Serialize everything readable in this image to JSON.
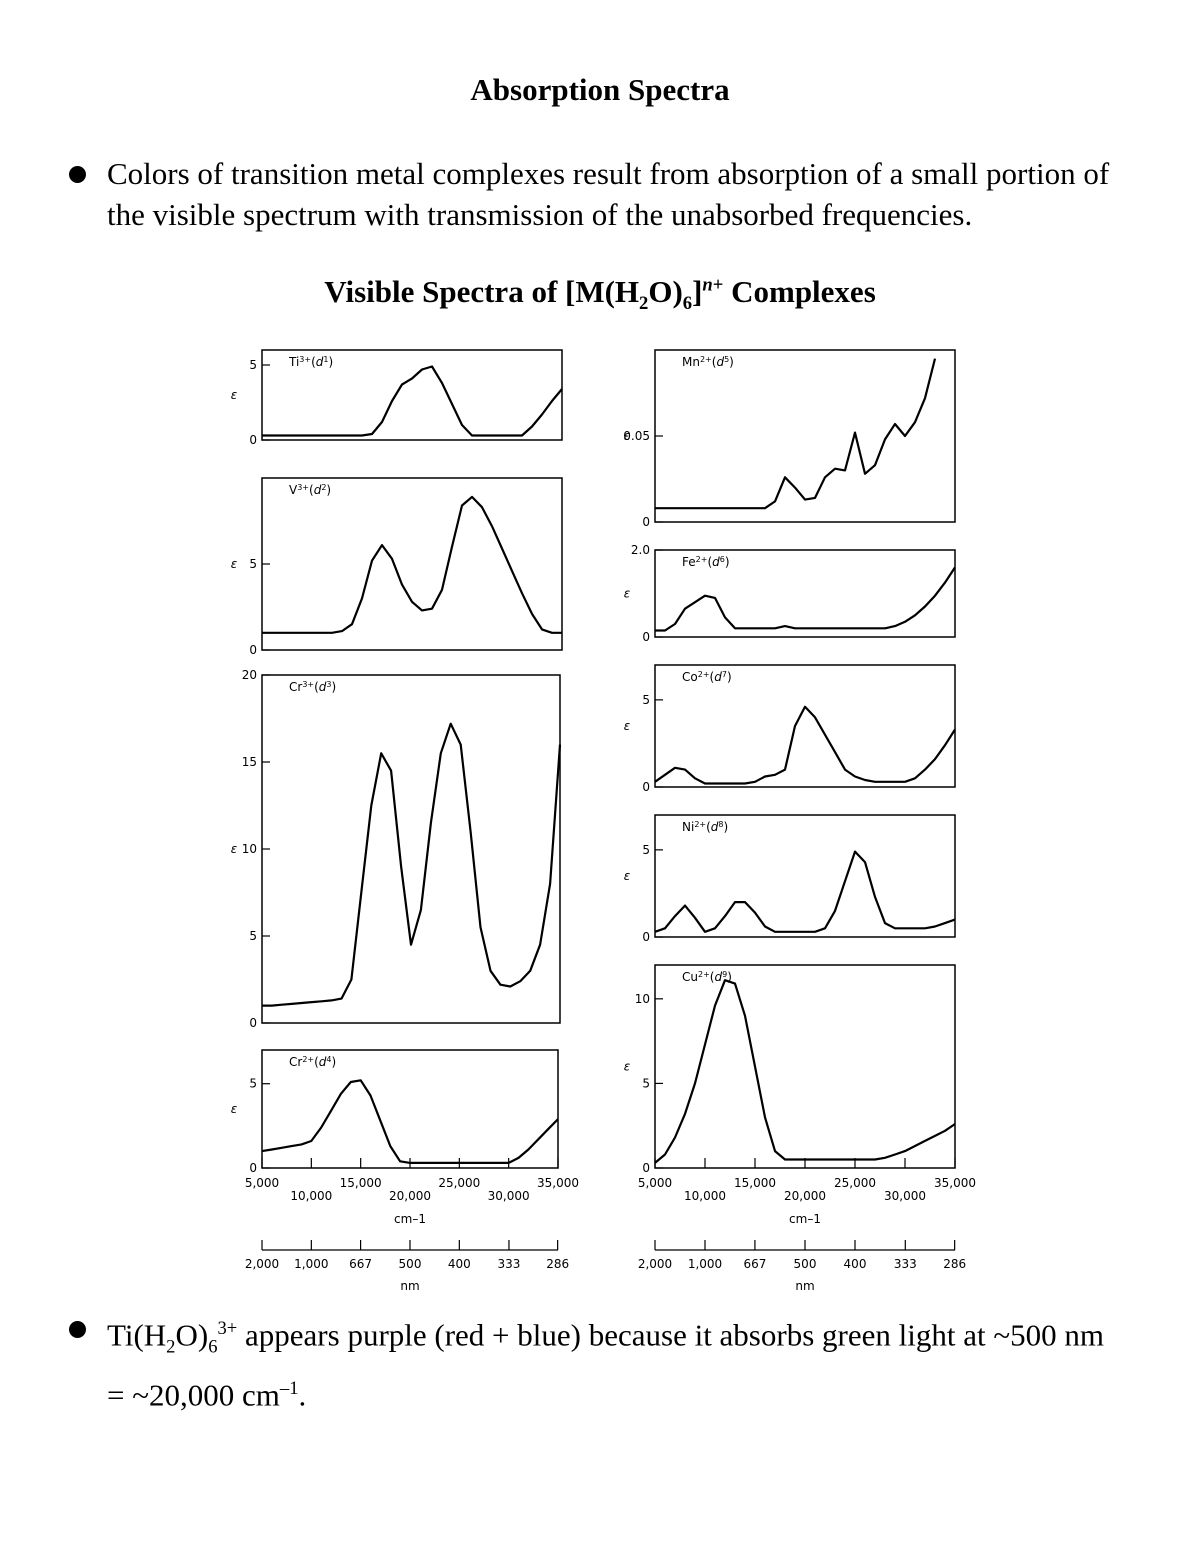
{
  "header": {
    "title": "Absorption Spectra"
  },
  "bullets": [
    {
      "segments": [
        {
          "text": "Colors of transition metal complexes result from absorption of a small portion of the visible spectrum with transmission of the unabsorbed frequencies."
        }
      ]
    },
    {
      "segments": [
        {
          "text": "Ti(H"
        },
        {
          "text": "2",
          "sub": true
        },
        {
          "text": "O)"
        },
        {
          "text": "6",
          "sub": true
        },
        {
          "text": "3+",
          "sup": true
        },
        {
          "text": " appears purple (red + blue) because it absorbs green light at ~500 nm = ~20,000 cm"
        },
        {
          "text": "–1",
          "sup": true
        },
        {
          "text": "."
        }
      ]
    }
  ],
  "figure": {
    "title": {
      "segments": [
        {
          "text": "Visible Spectra of [M(H"
        },
        {
          "text": "2",
          "sub": true
        },
        {
          "text": "O)"
        },
        {
          "text": "6",
          "sub": true
        },
        {
          "text": "]"
        },
        {
          "text": "n",
          "sup": true,
          "italic": true
        },
        {
          "text": "+",
          "sup": true
        },
        {
          "text": " Complexes"
        }
      ]
    }
  },
  "chart_data": [
    {
      "type": "line",
      "label": [
        {
          "text": "Ti"
        },
        {
          "text": "3+",
          "sup": true
        },
        {
          "text": "("
        },
        {
          "text": "d",
          "italic": true
        },
        {
          "text": "1",
          "sup": true
        },
        {
          "text": ")"
        }
      ],
      "y_label": "ε",
      "color": "#000000",
      "x": [
        5000,
        6000,
        7000,
        8000,
        9000,
        10000,
        11000,
        12000,
        13000,
        14000,
        15000,
        16000,
        17000,
        18000,
        19000,
        20000,
        21000,
        22000,
        23000,
        24000,
        25000,
        26000,
        27000,
        28000,
        29000,
        30000,
        31000,
        32000,
        33000,
        34000,
        35000
      ],
      "values": [
        0.3,
        0.3,
        0.3,
        0.3,
        0.3,
        0.3,
        0.3,
        0.3,
        0.3,
        0.3,
        0.3,
        0.4,
        1.2,
        2.6,
        3.7,
        4.1,
        4.7,
        4.9,
        3.8,
        2.4,
        1.0,
        0.3,
        0.3,
        0.3,
        0.3,
        0.3,
        0.3,
        0.9,
        1.7,
        2.6,
        3.4
      ],
      "xlim": [
        5000,
        35000
      ],
      "ylim": [
        0,
        6
      ],
      "yticks": [
        0,
        5
      ]
    },
    {
      "type": "line",
      "label": [
        {
          "text": "V"
        },
        {
          "text": "3+",
          "sup": true
        },
        {
          "text": "("
        },
        {
          "text": "d",
          "italic": true
        },
        {
          "text": "2",
          "sup": true
        },
        {
          "text": ")"
        }
      ],
      "y_label": "ε",
      "color": "#000000",
      "x": [
        5000,
        6000,
        7000,
        8000,
        9000,
        10000,
        11000,
        12000,
        13000,
        14000,
        15000,
        16000,
        17000,
        18000,
        19000,
        20000,
        21000,
        22000,
        23000,
        24000,
        25000,
        26000,
        27000,
        28000,
        29000,
        30000,
        31000,
        32000,
        33000,
        34000,
        35000
      ],
      "values": [
        1.0,
        1.0,
        1.0,
        1.0,
        1.0,
        1.0,
        1.0,
        1.0,
        1.1,
        1.5,
        3.0,
        5.2,
        6.1,
        5.3,
        3.8,
        2.8,
        2.3,
        2.4,
        3.5,
        6.0,
        8.4,
        8.9,
        8.3,
        7.2,
        5.9,
        4.6,
        3.3,
        2.1,
        1.2,
        1.0,
        1.0
      ],
      "xlim": [
        5000,
        35000
      ],
      "ylim": [
        0,
        10
      ],
      "yticks": [
        0,
        5
      ]
    },
    {
      "type": "line",
      "label": [
        {
          "text": "Cr"
        },
        {
          "text": "3+",
          "sup": true
        },
        {
          "text": "("
        },
        {
          "text": "d",
          "italic": true
        },
        {
          "text": "3",
          "sup": true
        },
        {
          "text": ")"
        }
      ],
      "y_label": "ε",
      "color": "#000000",
      "x": [
        5000,
        6000,
        7000,
        8000,
        9000,
        10000,
        11000,
        12000,
        13000,
        14000,
        15000,
        16000,
        17000,
        18000,
        19000,
        20000,
        21000,
        22000,
        23000,
        24000,
        25000,
        26000,
        27000,
        28000,
        29000,
        30000,
        31000,
        32000,
        33000,
        34000,
        35000
      ],
      "values": [
        1.0,
        1.0,
        1.05,
        1.1,
        1.15,
        1.2,
        1.25,
        1.3,
        1.4,
        2.5,
        7.5,
        12.5,
        15.5,
        14.5,
        9.0,
        4.5,
        6.5,
        11.5,
        15.5,
        17.2,
        16.0,
        11.0,
        5.5,
        3.0,
        2.2,
        2.1,
        2.4,
        3.0,
        4.5,
        8.0,
        16.0
      ],
      "xlim": [
        5000,
        35000
      ],
      "ylim": [
        0,
        20
      ],
      "yticks": [
        0,
        5,
        10,
        15,
        20
      ]
    },
    {
      "type": "line",
      "label": [
        {
          "text": "Cr"
        },
        {
          "text": "2+",
          "sup": true
        },
        {
          "text": "("
        },
        {
          "text": "d",
          "italic": true
        },
        {
          "text": "4",
          "sup": true
        },
        {
          "text": ")"
        }
      ],
      "y_label": "ε",
      "color": "#000000",
      "x": [
        5000,
        6000,
        7000,
        8000,
        9000,
        10000,
        11000,
        12000,
        13000,
        14000,
        15000,
        16000,
        17000,
        18000,
        19000,
        20000,
        21000,
        22000,
        23000,
        24000,
        25000,
        26000,
        27000,
        28000,
        29000,
        30000,
        31000,
        32000,
        33000,
        34000,
        35000
      ],
      "values": [
        1.0,
        1.1,
        1.2,
        1.3,
        1.4,
        1.6,
        2.4,
        3.4,
        4.4,
        5.1,
        5.2,
        4.3,
        2.8,
        1.3,
        0.4,
        0.3,
        0.3,
        0.3,
        0.3,
        0.3,
        0.3,
        0.3,
        0.3,
        0.3,
        0.3,
        0.3,
        0.6,
        1.1,
        1.7,
        2.3,
        2.9
      ],
      "xlim": [
        5000,
        35000
      ],
      "ylim": [
        0,
        7
      ],
      "yticks": [
        0,
        5
      ],
      "xticks": [
        {
          "value": 5000,
          "label": "5,000"
        },
        {
          "value": 10000,
          "label": "10,000"
        },
        {
          "value": 15000,
          "label": "15,000"
        },
        {
          "value": 20000,
          "label": "20,000"
        },
        {
          "value": 25000,
          "label": "25,000"
        },
        {
          "value": 30000,
          "label": "30,000"
        },
        {
          "value": 35000,
          "label": "35,000"
        }
      ],
      "x_label": "cm–1",
      "x2_label": "nm",
      "x2ticks": [
        {
          "value": 2000,
          "label": "2,000"
        },
        {
          "value": 1000,
          "label": "1,000"
        },
        667,
        500,
        400,
        333,
        286
      ]
    },
    {
      "type": "line",
      "label": [
        {
          "text": "Mn"
        },
        {
          "text": "2+",
          "sup": true
        },
        {
          "text": "("
        },
        {
          "text": "d",
          "italic": true
        },
        {
          "text": "5",
          "sup": true
        },
        {
          "text": ")"
        }
      ],
      "y_label": "ε",
      "color": "#000000",
      "x": [
        5000,
        6000,
        7000,
        8000,
        9000,
        10000,
        11000,
        12000,
        13000,
        14000,
        15000,
        16000,
        17000,
        18000,
        19000,
        20000,
        21000,
        22000,
        23000,
        24000,
        25000,
        26000,
        27000,
        28000,
        29000,
        30000,
        31000,
        32000,
        33000,
        34000,
        35000
      ],
      "values": [
        0.008,
        0.008,
        0.008,
        0.008,
        0.008,
        0.008,
        0.008,
        0.008,
        0.008,
        0.008,
        0.008,
        0.008,
        0.012,
        0.026,
        0.02,
        0.013,
        0.014,
        0.026,
        0.031,
        0.03,
        0.052,
        0.028,
        0.033,
        0.048,
        0.057,
        0.05,
        0.058,
        0.072,
        0.095,
        null,
        null
      ],
      "xlim": [
        5000,
        35000
      ],
      "ylim": [
        0,
        0.1
      ],
      "yticks": [
        0,
        0.05
      ]
    },
    {
      "type": "line",
      "label": [
        {
          "text": "Fe"
        },
        {
          "text": "2+",
          "sup": true
        },
        {
          "text": "("
        },
        {
          "text": "d",
          "italic": true
        },
        {
          "text": "6",
          "sup": true
        },
        {
          "text": ")"
        }
      ],
      "y_label": "ε",
      "color": "#000000",
      "x": [
        5000,
        6000,
        7000,
        8000,
        9000,
        10000,
        11000,
        12000,
        13000,
        14000,
        15000,
        16000,
        17000,
        18000,
        19000,
        20000,
        21000,
        22000,
        23000,
        24000,
        25000,
        26000,
        27000,
        28000,
        29000,
        30000,
        31000,
        32000,
        33000,
        34000,
        35000
      ],
      "values": [
        0.15,
        0.15,
        0.3,
        0.65,
        0.8,
        0.95,
        0.9,
        0.45,
        0.2,
        0.2,
        0.2,
        0.2,
        0.2,
        0.25,
        0.2,
        0.2,
        0.2,
        0.2,
        0.2,
        0.2,
        0.2,
        0.2,
        0.2,
        0.2,
        0.25,
        0.35,
        0.5,
        0.7,
        0.95,
        1.25,
        1.6
      ],
      "xlim": [
        5000,
        35000
      ],
      "ylim": [
        0,
        2
      ],
      "yticks": [
        0,
        {
          "value": 2,
          "label": "2.0"
        }
      ]
    },
    {
      "type": "line",
      "label": [
        {
          "text": "Co"
        },
        {
          "text": "2+",
          "sup": true
        },
        {
          "text": "("
        },
        {
          "text": "d",
          "italic": true
        },
        {
          "text": "7",
          "sup": true
        },
        {
          "text": ")"
        }
      ],
      "y_label": "ε",
      "color": "#000000",
      "x": [
        5000,
        6000,
        7000,
        8000,
        9000,
        10000,
        11000,
        12000,
        13000,
        14000,
        15000,
        16000,
        17000,
        18000,
        19000,
        20000,
        21000,
        22000,
        23000,
        24000,
        25000,
        26000,
        27000,
        28000,
        29000,
        30000,
        31000,
        32000,
        33000,
        34000,
        35000
      ],
      "values": [
        0.3,
        0.7,
        1.1,
        1.0,
        0.5,
        0.2,
        0.2,
        0.2,
        0.2,
        0.2,
        0.3,
        0.6,
        0.7,
        1.0,
        3.5,
        4.6,
        4.0,
        3.0,
        2.0,
        1.0,
        0.6,
        0.4,
        0.3,
        0.3,
        0.3,
        0.3,
        0.5,
        1.0,
        1.6,
        2.4,
        3.3
      ],
      "xlim": [
        5000,
        35000
      ],
      "ylim": [
        0,
        7
      ],
      "yticks": [
        0,
        5
      ]
    },
    {
      "type": "line",
      "label": [
        {
          "text": "Ni"
        },
        {
          "text": "2+",
          "sup": true
        },
        {
          "text": "("
        },
        {
          "text": "d",
          "italic": true
        },
        {
          "text": "8",
          "sup": true
        },
        {
          "text": ")"
        }
      ],
      "y_label": "ε",
      "color": "#000000",
      "x": [
        5000,
        6000,
        7000,
        8000,
        9000,
        10000,
        11000,
        12000,
        13000,
        14000,
        15000,
        16000,
        17000,
        18000,
        19000,
        20000,
        21000,
        22000,
        23000,
        24000,
        25000,
        26000,
        27000,
        28000,
        29000,
        30000,
        31000,
        32000,
        33000,
        34000,
        35000
      ],
      "values": [
        0.3,
        0.5,
        1.2,
        1.8,
        1.1,
        0.3,
        0.5,
        1.2,
        2.0,
        2.0,
        1.4,
        0.6,
        0.3,
        0.3,
        0.3,
        0.3,
        0.3,
        0.5,
        1.5,
        3.2,
        4.9,
        4.3,
        2.3,
        0.8,
        0.5,
        0.5,
        0.5,
        0.5,
        0.6,
        0.8,
        1.0
      ],
      "xlim": [
        5000,
        35000
      ],
      "ylim": [
        0,
        7
      ],
      "yticks": [
        0,
        5
      ]
    },
    {
      "type": "line",
      "label": [
        {
          "text": "Cu"
        },
        {
          "text": "2+",
          "sup": true
        },
        {
          "text": "("
        },
        {
          "text": "d",
          "italic": true
        },
        {
          "text": "9",
          "sup": true
        },
        {
          "text": ")"
        }
      ],
      "y_label": "ε",
      "color": "#000000",
      "x": [
        5000,
        6000,
        7000,
        8000,
        9000,
        10000,
        11000,
        12000,
        13000,
        14000,
        15000,
        16000,
        17000,
        18000,
        19000,
        20000,
        21000,
        22000,
        23000,
        24000,
        25000,
        26000,
        27000,
        28000,
        29000,
        30000,
        31000,
        32000,
        33000,
        34000,
        35000
      ],
      "values": [
        0.3,
        0.8,
        1.8,
        3.2,
        5.0,
        7.3,
        9.6,
        11.1,
        10.9,
        9.0,
        6.0,
        3.0,
        1.0,
        0.5,
        0.5,
        0.5,
        0.5,
        0.5,
        0.5,
        0.5,
        0.5,
        0.5,
        0.5,
        0.6,
        0.8,
        1.0,
        1.3,
        1.6,
        1.9,
        2.2,
        2.6
      ],
      "xlim": [
        5000,
        35000
      ],
      "ylim": [
        0,
        12
      ],
      "yticks": [
        0,
        5,
        10
      ],
      "xticks": [
        {
          "value": 5000,
          "label": "5,000"
        },
        {
          "value": 10000,
          "label": "10,000"
        },
        {
          "value": 15000,
          "label": "15,000"
        },
        {
          "value": 20000,
          "label": "20,000"
        },
        {
          "value": 25000,
          "label": "25,000"
        },
        {
          "value": 30000,
          "label": "30,000"
        },
        {
          "value": 35000,
          "label": "35,000"
        }
      ],
      "x_label": "cm–1",
      "x2_label": "nm",
      "x2ticks": [
        {
          "value": 2000,
          "label": "2,000"
        },
        {
          "value": 1000,
          "label": "1,000"
        },
        667,
        500,
        400,
        333,
        286
      ]
    }
  ]
}
